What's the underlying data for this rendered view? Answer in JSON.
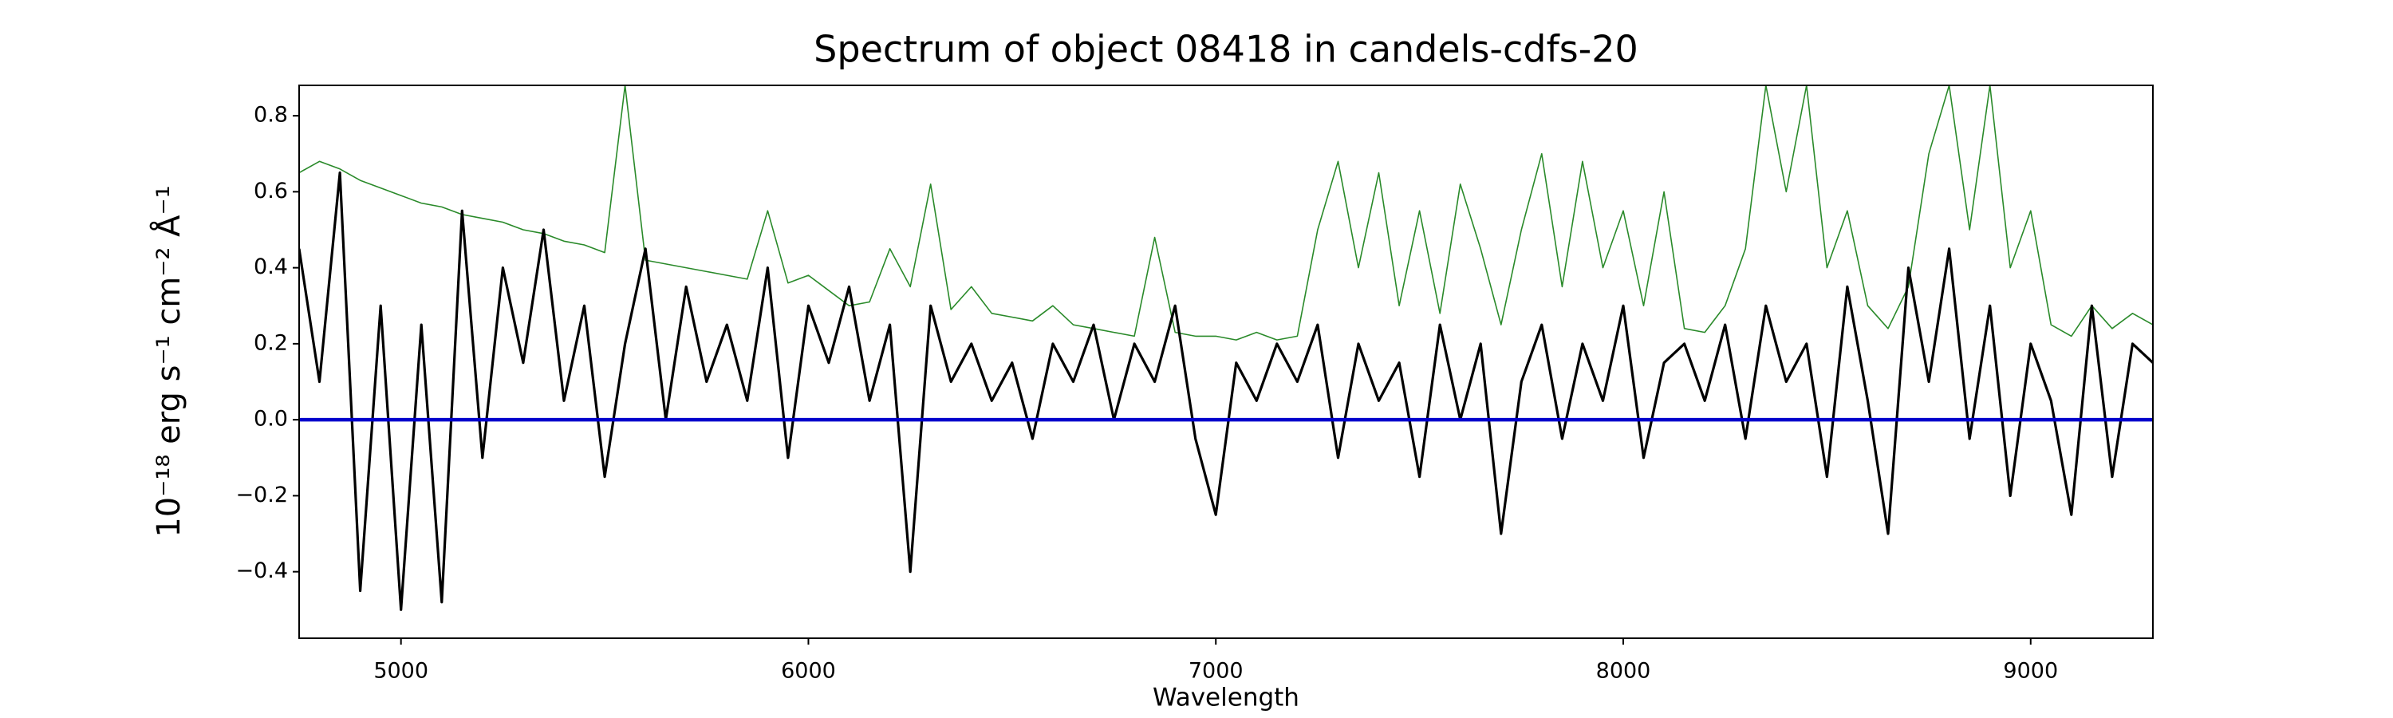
{
  "chart_data": {
    "type": "line",
    "title": "Spectrum of object 08418 in candels-cdfs-20",
    "xlabel": "Wavelength",
    "ylabel": "10⁻¹⁸ erg s⁻¹ cm⁻² Å⁻¹",
    "xlim": [
      4750,
      9300
    ],
    "ylim": [
      -0.575,
      0.88
    ],
    "xticks": [
      5000,
      6000,
      7000,
      8000,
      9000
    ],
    "yticks": [
      {
        "value": -0.4,
        "label": "−0.4"
      },
      {
        "value": -0.2,
        "label": "−0.2"
      },
      {
        "value": 0,
        "label": "0.0"
      },
      0.2,
      0.4,
      0.6,
      0.8
    ],
    "grid": false,
    "x": [
      4750,
      4800,
      4850,
      4900,
      4950,
      5000,
      5050,
      5100,
      5150,
      5200,
      5250,
      5300,
      5350,
      5400,
      5450,
      5500,
      5550,
      5600,
      5650,
      5700,
      5750,
      5800,
      5850,
      5900,
      5950,
      6000,
      6050,
      6100,
      6150,
      6200,
      6250,
      6300,
      6350,
      6400,
      6450,
      6500,
      6550,
      6600,
      6650,
      6700,
      6750,
      6800,
      6850,
      6900,
      6950,
      7000,
      7050,
      7100,
      7150,
      7200,
      7250,
      7300,
      7350,
      7400,
      7450,
      7500,
      7550,
      7600,
      7650,
      7700,
      7750,
      7800,
      7850,
      7900,
      7950,
      8000,
      8050,
      8100,
      8150,
      8200,
      8250,
      8300,
      8350,
      8400,
      8450,
      8500,
      8550,
      8600,
      8650,
      8700,
      8750,
      8800,
      8850,
      8900,
      8950,
      9000,
      9050,
      9100,
      9150,
      9200,
      9250,
      9300
    ],
    "series": [
      {
        "color": "#2a8a2a",
        "width": 1.6,
        "values": [
          0.65,
          0.68,
          0.66,
          0.63,
          0.61,
          0.59,
          0.57,
          0.56,
          0.54,
          0.53,
          0.52,
          0.5,
          0.49,
          0.47,
          0.46,
          0.44,
          0.88,
          0.42,
          0.41,
          0.4,
          0.39,
          0.38,
          0.37,
          0.55,
          0.36,
          0.38,
          0.34,
          0.3,
          0.31,
          0.45,
          0.35,
          0.62,
          0.29,
          0.35,
          0.28,
          0.27,
          0.26,
          0.3,
          0.25,
          0.24,
          0.23,
          0.22,
          0.48,
          0.23,
          0.22,
          0.22,
          0.21,
          0.23,
          0.21,
          0.22,
          0.5,
          0.68,
          0.4,
          0.65,
          0.3,
          0.55,
          0.28,
          0.62,
          0.45,
          0.25,
          0.5,
          0.7,
          0.35,
          0.68,
          0.4,
          0.55,
          0.3,
          0.6,
          0.24,
          0.23,
          0.3,
          0.45,
          0.88,
          0.6,
          0.88,
          0.4,
          0.55,
          0.3,
          0.24,
          0.35,
          0.7,
          0.88,
          0.5,
          0.88,
          0.4,
          0.55,
          0.25,
          0.22,
          0.3,
          0.24,
          0.28,
          0.25
        ]
      },
      {
        "color": "#000000",
        "width": 3.2,
        "values": [
          0.45,
          0.1,
          0.65,
          -0.45,
          0.3,
          -0.5,
          0.25,
          -0.48,
          0.55,
          -0.1,
          0.4,
          0.15,
          0.5,
          0.05,
          0.3,
          -0.15,
          0.2,
          0.45,
          0.0,
          0.35,
          0.1,
          0.25,
          0.05,
          0.4,
          -0.1,
          0.3,
          0.15,
          0.35,
          0.05,
          0.25,
          -0.4,
          0.3,
          0.1,
          0.2,
          0.05,
          0.15,
          -0.05,
          0.2,
          0.1,
          0.25,
          0.0,
          0.2,
          0.1,
          0.3,
          -0.05,
          -0.25,
          0.15,
          0.05,
          0.2,
          0.1,
          0.25,
          -0.1,
          0.2,
          0.05,
          0.15,
          -0.15,
          0.25,
          0.0,
          0.2,
          -0.3,
          0.1,
          0.25,
          -0.05,
          0.2,
          0.05,
          0.3,
          -0.1,
          0.15,
          0.2,
          0.05,
          0.25,
          -0.05,
          0.3,
          0.1,
          0.2,
          -0.15,
          0.35,
          0.05,
          -0.3,
          0.4,
          0.1,
          0.45,
          -0.05,
          0.3,
          -0.2,
          0.2,
          0.05,
          -0.25,
          0.3,
          -0.15,
          0.2,
          0.15
        ]
      },
      {
        "color": "#0000cc",
        "width": 4.5,
        "values": [
          0,
          0,
          0,
          0,
          0,
          0,
          0,
          0,
          0,
          0,
          0,
          0,
          0,
          0,
          0,
          0,
          0,
          0,
          0,
          0,
          0,
          0,
          0,
          0,
          0,
          0,
          0,
          0,
          0,
          0,
          0,
          0,
          0,
          0,
          0,
          0,
          0,
          0,
          0,
          0,
          0,
          0,
          0,
          0,
          0,
          0,
          0,
          0,
          0,
          0,
          0,
          0,
          0,
          0,
          0,
          0,
          0,
          0,
          0,
          0,
          0,
          0,
          0,
          0,
          0,
          0,
          0,
          0,
          0,
          0,
          0,
          0,
          0,
          0,
          0,
          0,
          0,
          0,
          0,
          0,
          0,
          0,
          0,
          0,
          0,
          0,
          0,
          0,
          0,
          0,
          0,
          0
        ]
      }
    ]
  }
}
